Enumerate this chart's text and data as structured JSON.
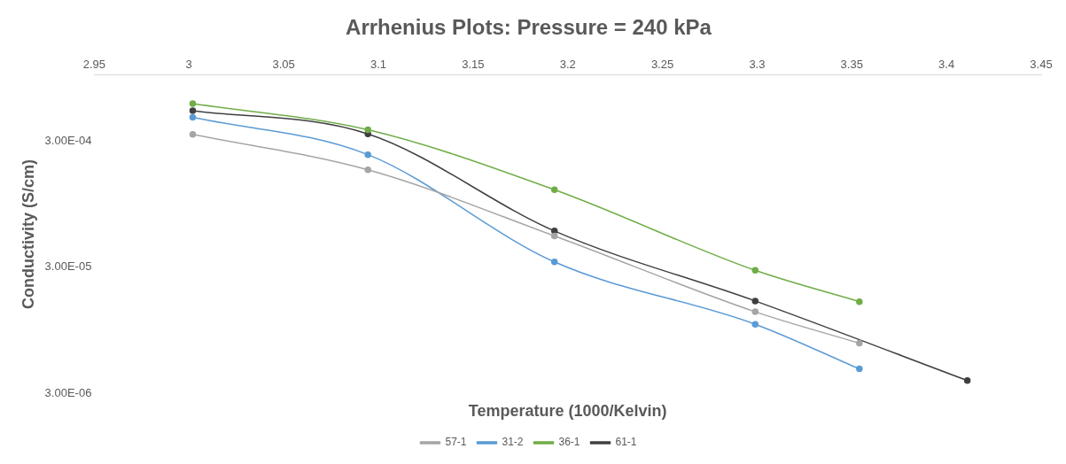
{
  "chart_data": {
    "type": "line",
    "title": "Arrhenius Plots: Pressure = 240 kPa",
    "xlabel": "Temperature (1000/Kelvin)",
    "ylabel": "Conductivity (S/cm)",
    "log": "y",
    "grid": false,
    "legend": "bottom",
    "marker": "circle",
    "line_style": "solid",
    "xlim": [
      2.95,
      3.45
    ],
    "xticks": [
      2.95,
      3,
      3.05,
      3.1,
      3.15,
      3.2,
      3.25,
      3.3,
      3.35,
      3.4,
      3.45
    ],
    "ylim": [
      3e-06,
      0.001
    ],
    "yticks": [
      {
        "value": 0.0003,
        "label": "3.00E-04"
      },
      {
        "value": 3e-05,
        "label": "3.00E-05"
      },
      {
        "value": 3e-06,
        "label": "3.00E-06"
      }
    ],
    "series": [
      {
        "name": "57-1",
        "color": "#a5a5a5",
        "x": [
          3.002,
          3.0945,
          3.193,
          3.299,
          3.354
        ],
        "values": [
          0.000337,
          0.000177,
          5.3e-05,
          1.33e-05,
          7.5e-06
        ]
      },
      {
        "name": "31-2",
        "color": "#5b9bd5",
        "x": [
          3.002,
          3.0945,
          3.193,
          3.299,
          3.354
        ],
        "values": [
          0.00046,
          0.000233,
          3.3e-05,
          1.06e-05,
          4.7e-06
        ]
      },
      {
        "name": "36-1",
        "color": "#70ad47",
        "x": [
          3.002,
          3.0945,
          3.193,
          3.299,
          3.354
        ],
        "values": [
          0.00059,
          0.000367,
          0.000123,
          2.83e-05,
          1.6e-05
        ]
      },
      {
        "name": "61-1",
        "color": "#404040",
        "x": [
          3.002,
          3.0945,
          3.193,
          3.299,
          3.411
        ],
        "values": [
          0.00052,
          0.00034,
          5.8e-05,
          1.62e-05,
          3.8e-06
        ]
      }
    ]
  }
}
